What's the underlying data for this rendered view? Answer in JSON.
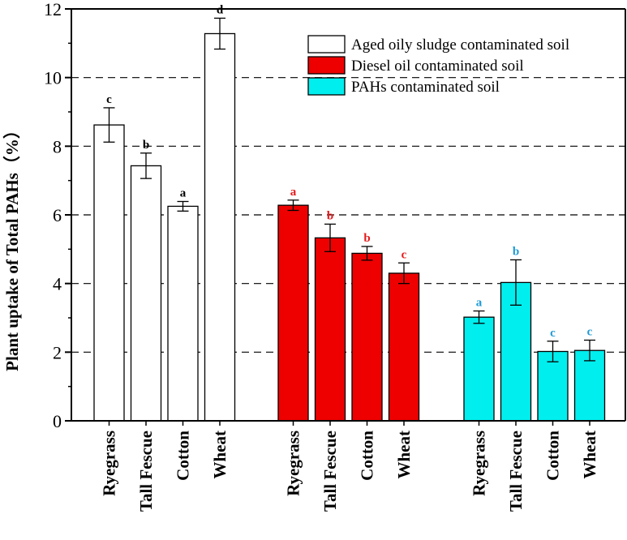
{
  "chart_data": {
    "type": "bar",
    "ylabel": "Plant uptake of Total PAHs（%）",
    "xlabel": "",
    "ylim": [
      0,
      12
    ],
    "yticks": [
      0,
      2,
      4,
      6,
      8,
      10,
      12
    ],
    "grid": "horizontal dashed at 2, 4, 6, 8, 10",
    "legend_position": "top-right",
    "categories": [
      "Ryegrass",
      "Tall Fescue",
      "Cotton",
      "Wheat"
    ],
    "series": [
      {
        "name": "Aged oily sludge contaminated soil",
        "color": "#ffffff",
        "label_color": "#000000",
        "values": [
          8.62,
          7.43,
          6.25,
          11.28
        ],
        "errors": [
          0.5,
          0.37,
          0.14,
          0.45
        ],
        "labels": [
          "c",
          "b",
          "a",
          "d"
        ]
      },
      {
        "name": "Diesel oil contaminated soil",
        "color": "#ee0000",
        "label_color": "#e41a1c",
        "values": [
          6.28,
          5.33,
          4.88,
          4.3
        ],
        "errors": [
          0.15,
          0.4,
          0.2,
          0.3
        ],
        "labels": [
          "a",
          "b",
          "b",
          "c"
        ]
      },
      {
        "name": "PAHs contaminated soil",
        "color": "#00eeee",
        "label_color": "#1f9ad6",
        "values": [
          3.02,
          4.03,
          2.02,
          2.05
        ],
        "errors": [
          0.18,
          0.66,
          0.3,
          0.3
        ],
        "labels": [
          "a",
          "b",
          "c",
          "c"
        ]
      }
    ]
  }
}
